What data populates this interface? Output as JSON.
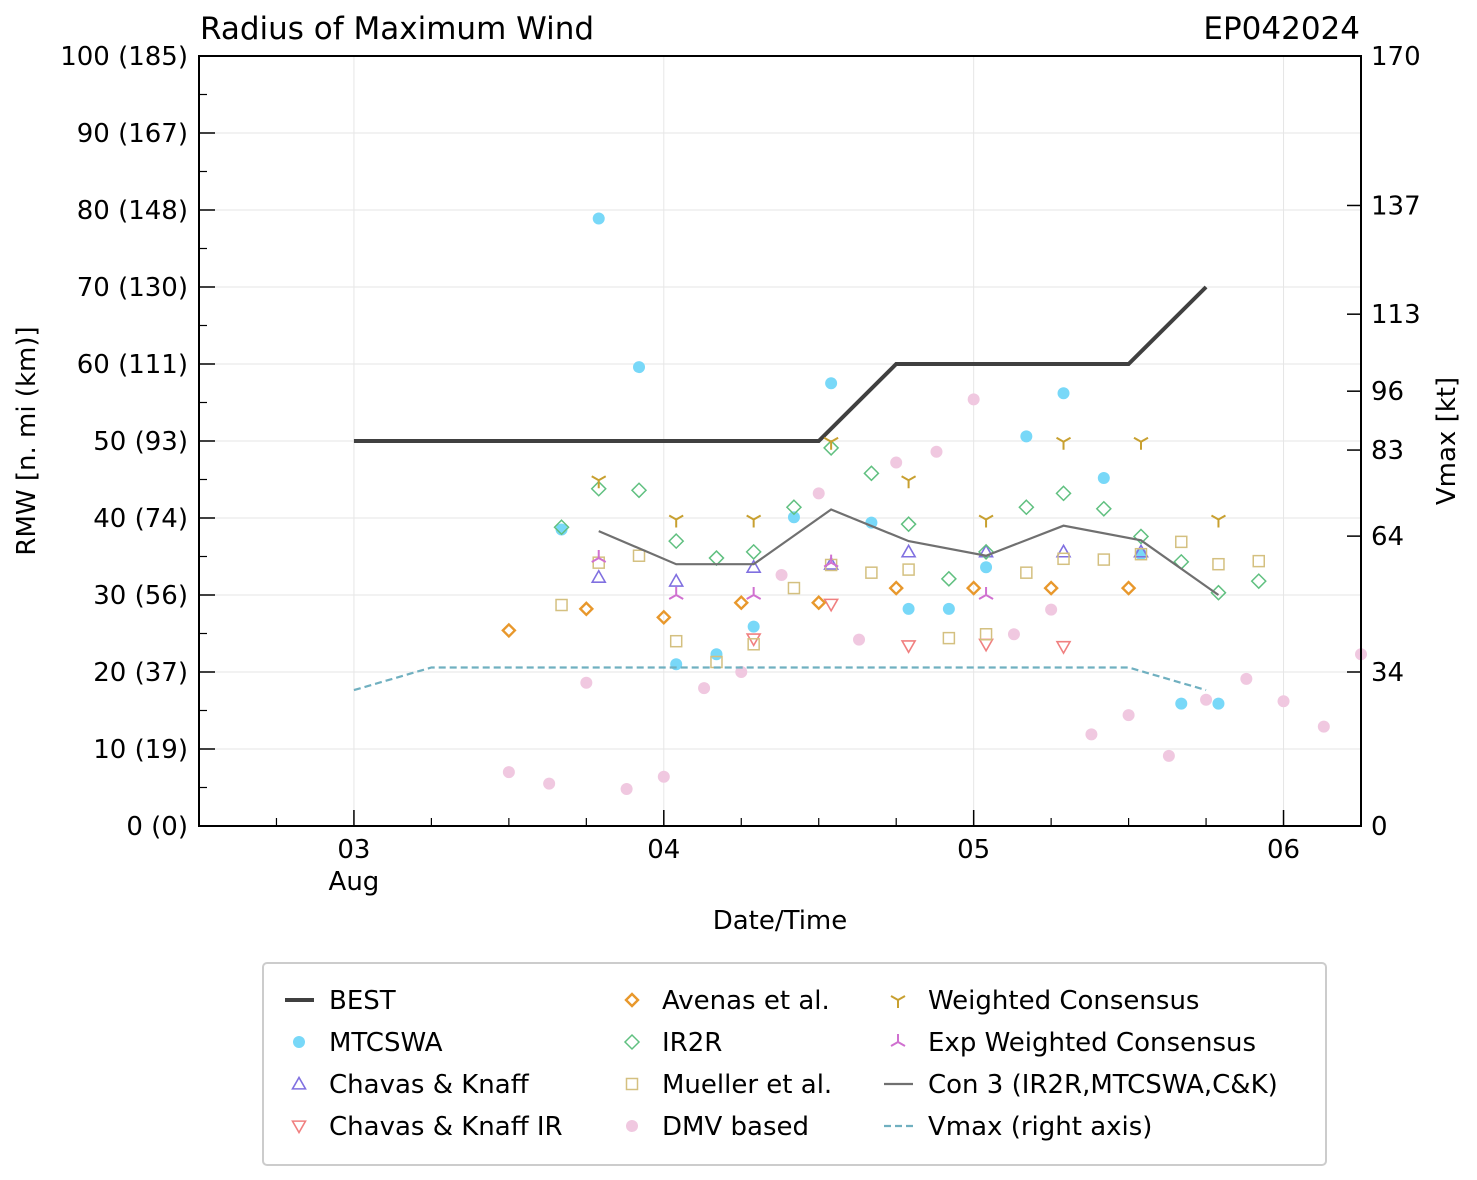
{
  "chart_data": {
    "type": "scatter",
    "title": "Radius of Maximum Wind",
    "storm_id": "EP042024",
    "xlabel": "Date/Time",
    "ylabel": "RMW [n. mi (km)]",
    "ylabel_right": "Vmax [kt]",
    "xlim": [
      -0.5,
      3.25
    ],
    "ylim": [
      0,
      100
    ],
    "ylim_right": [
      0,
      170
    ],
    "grid": true,
    "legend_position": "below",
    "x_units": "days since 03 Aug 2024 00Z",
    "x_ticks": [
      {
        "x": 0,
        "label": "03",
        "sub": "Aug"
      },
      {
        "x": 1,
        "label": "04",
        "sub": ""
      },
      {
        "x": 2,
        "label": "05",
        "sub": ""
      },
      {
        "x": 3,
        "label": "06",
        "sub": ""
      }
    ],
    "y_ticks": [
      {
        "v": 0,
        "label": "0 (0)"
      },
      {
        "v": 10,
        "label": "10 (19)"
      },
      {
        "v": 20,
        "label": "20 (37)"
      },
      {
        "v": 30,
        "label": "30 (56)"
      },
      {
        "v": 40,
        "label": "40 (74)"
      },
      {
        "v": 50,
        "label": "50 (93)"
      },
      {
        "v": 60,
        "label": "60 (111)"
      },
      {
        "v": 70,
        "label": "70 (130)"
      },
      {
        "v": 80,
        "label": "80 (148)"
      },
      {
        "v": 90,
        "label": "90 (167)"
      },
      {
        "v": 100,
        "label": "100 (185)"
      }
    ],
    "y_ticks_right": [
      {
        "v": 0,
        "label": "0"
      },
      {
        "v": 34,
        "label": "34"
      },
      {
        "v": 64,
        "label": "64"
      },
      {
        "v": 83,
        "label": "83"
      },
      {
        "v": 96,
        "label": "96"
      },
      {
        "v": 113,
        "label": "113"
      },
      {
        "v": 137,
        "label": "137"
      },
      {
        "v": 170,
        "label": "170"
      }
    ],
    "series": [
      {
        "name": "BEST",
        "kind": "line",
        "color": "#404040",
        "width": 4,
        "x": [
          0,
          1.5,
          1.75,
          2.5,
          2.75
        ],
        "y": [
          50,
          50,
          60,
          60,
          70
        ]
      },
      {
        "name": "MTCSWA",
        "kind": "circle",
        "color": "#78d8f8",
        "x": [
          0.67,
          0.79,
          0.92,
          1.04,
          1.17,
          1.29,
          1.42,
          1.54,
          1.67,
          1.79,
          1.92,
          2.04,
          2.17,
          2.29,
          2.42,
          2.54,
          2.67,
          2.79
        ],
        "y": [
          38.5,
          78.9,
          59.6,
          21,
          22.3,
          25.9,
          40.1,
          57.5,
          39.4,
          28.2,
          28.2,
          33.6,
          50.6,
          56.2,
          45.2,
          35.3,
          15.9,
          15.9
        ]
      },
      {
        "name": "Chavas & Knaff",
        "kind": "triangle-up",
        "color": "#8070e0",
        "x": [
          0.79,
          1.04,
          1.29,
          1.54,
          1.79,
          2.04,
          2.29,
          2.54
        ],
        "y": [
          32.3,
          31.8,
          33.6,
          34,
          35.6,
          35.6,
          35.6,
          35.6
        ]
      },
      {
        "name": "Chavas & Knaff IR",
        "kind": "triangle-down",
        "color": "#f08080",
        "x": [
          1.29,
          1.54,
          1.79,
          2.04,
          2.29
        ],
        "y": [
          24.3,
          28.8,
          23.4,
          23.6,
          23.3
        ]
      },
      {
        "name": "Avenas et al.",
        "kind": "diamond",
        "color": "#e8982c",
        "x": [
          0.5,
          0.75,
          1.0,
          1.25,
          1.5,
          1.75,
          2.0,
          2.25,
          2.5
        ],
        "y": [
          25.4,
          28.2,
          27.1,
          29,
          29,
          30.9,
          30.9,
          30.9,
          30.9
        ]
      },
      {
        "name": "IR2R",
        "kind": "diamond-open",
        "color": "#60c080",
        "x": [
          0.67,
          0.79,
          0.92,
          1.04,
          1.17,
          1.29,
          1.42,
          1.54,
          1.67,
          1.79,
          1.92,
          2.04,
          2.17,
          2.29,
          2.42,
          2.54,
          2.67,
          2.79,
          2.92
        ],
        "y": [
          38.8,
          43.8,
          43.6,
          37,
          34.8,
          35.6,
          41.4,
          49.1,
          45.8,
          39.2,
          32.1,
          35.6,
          41.4,
          43.2,
          41.2,
          37.6,
          34.3,
          30.3,
          31.8
        ]
      },
      {
        "name": "Mueller et al.",
        "kind": "square",
        "color": "#d4c080",
        "x": [
          0.67,
          0.79,
          0.92,
          1.04,
          1.17,
          1.29,
          1.42,
          1.54,
          1.67,
          1.79,
          1.92,
          2.04,
          2.17,
          2.29,
          2.42,
          2.54,
          2.67,
          2.79,
          2.92
        ],
        "y": [
          28.7,
          34.2,
          35.1,
          24,
          21.3,
          23.6,
          30.9,
          33.9,
          32.9,
          33.3,
          24.4,
          24.9,
          32.9,
          34.7,
          34.6,
          35.3,
          36.9,
          34,
          34.4
        ]
      },
      {
        "name": "DMV based",
        "kind": "circle",
        "color": "#f0c8e0",
        "x": [
          0.5,
          0.63,
          0.75,
          0.88,
          1.0,
          1.13,
          1.25,
          1.38,
          1.5,
          1.63,
          1.75,
          1.88,
          2.0,
          2.13,
          2.25,
          2.38,
          2.5,
          2.63,
          2.75,
          2.88,
          3.0,
          3.13,
          3.25
        ],
        "y": [
          7,
          5.5,
          18.6,
          4.8,
          6.4,
          17.9,
          20,
          32.6,
          43.2,
          24.2,
          47.2,
          48.6,
          55.4,
          24.9,
          28.1,
          11.9,
          14.4,
          9.1,
          16.4,
          19.1,
          16.2,
          12.9,
          22.3
        ]
      },
      {
        "name": "Weighted Consensus",
        "kind": "tri-down",
        "color": "#c8a030",
        "x": [
          0.79,
          1.04,
          1.29,
          1.54,
          1.79,
          2.04,
          2.29,
          2.54,
          2.79
        ],
        "y": [
          44.9,
          39.8,
          39.8,
          49.9,
          44.9,
          39.8,
          49.9,
          49.9,
          39.8
        ]
      },
      {
        "name": "Exp Weighted Consensus",
        "kind": "tri-up",
        "color": "#d070d0",
        "x": [
          0.79,
          1.04,
          1.29,
          1.54,
          2.04
        ],
        "y": [
          34.8,
          30,
          30,
          34.2,
          30
        ]
      },
      {
        "name": "Con 3 (IR2R,MTCSWA,C&K)",
        "kind": "line",
        "color": "#707070",
        "width": 2.2,
        "x": [
          0.79,
          1.04,
          1.29,
          1.54,
          1.79,
          2.04,
          2.29,
          2.54,
          2.79
        ],
        "y": [
          38.3,
          34,
          34,
          41.1,
          37,
          35.1,
          39,
          37.1,
          30
        ]
      },
      {
        "name": "Vmax (right axis)",
        "kind": "dashed",
        "color": "#70b0c0",
        "width": 2.2,
        "axis": "right",
        "x": [
          0,
          0.25,
          2.5,
          2.75
        ],
        "y": [
          30,
          35,
          35,
          30
        ]
      }
    ],
    "legend": [
      {
        "name": "BEST",
        "kind": "line",
        "color": "#404040"
      },
      {
        "name": "MTCSWA",
        "kind": "circle",
        "color": "#78d8f8"
      },
      {
        "name": "Chavas & Knaff",
        "kind": "triangle-up",
        "color": "#8070e0"
      },
      {
        "name": "Chavas & Knaff IR",
        "kind": "triangle-down",
        "color": "#f08080"
      },
      {
        "name": "Avenas et al.",
        "kind": "diamond",
        "color": "#e8982c"
      },
      {
        "name": "IR2R",
        "kind": "diamond-open",
        "color": "#60c080"
      },
      {
        "name": "Mueller et al.",
        "kind": "square",
        "color": "#d4c080"
      },
      {
        "name": "DMV based",
        "kind": "circle",
        "color": "#f0c8e0"
      },
      {
        "name": "Weighted Consensus",
        "kind": "tri-down",
        "color": "#c8a030"
      },
      {
        "name": "Exp Weighted Consensus",
        "kind": "tri-up",
        "color": "#d070d0"
      },
      {
        "name": "Con 3 (IR2R,MTCSWA,C&K)",
        "kind": "line-thin",
        "color": "#707070"
      },
      {
        "name": "Vmax (right axis)",
        "kind": "dashed",
        "color": "#70b0c0"
      }
    ]
  }
}
